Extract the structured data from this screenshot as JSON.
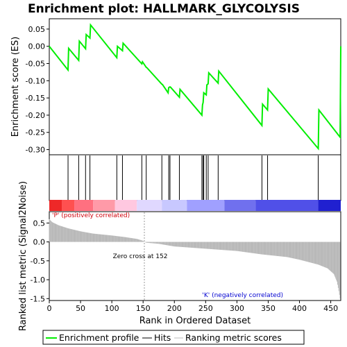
{
  "chart_data": {
    "type": "line",
    "title": "Enrichment plot: HALLMARK_GLYCOLYSIS",
    "es_panel": {
      "ylabel": "Enrichment score (ES)",
      "ylim": [
        -0.315,
        0.08
      ],
      "yticks": [
        "0.05",
        "0.00",
        "-0.05",
        "-0.10",
        "-0.15",
        "-0.20",
        "-0.25",
        "-0.30"
      ],
      "ytick_values": [
        0.05,
        0.0,
        -0.05,
        -0.1,
        -0.15,
        -0.2,
        -0.25,
        -0.3
      ],
      "series": [
        {
          "name": "Enrichment profile",
          "color": "#00ee00",
          "x": [
            0,
            30,
            31,
            47,
            48,
            58,
            59,
            65,
            66,
            108,
            109,
            117,
            118,
            148,
            149,
            155,
            156,
            180,
            181,
            190,
            191,
            193,
            194,
            208,
            209,
            244,
            245,
            246,
            247,
            251,
            252,
            254,
            255,
            270,
            271,
            340,
            341,
            349,
            350,
            430,
            431,
            465,
            466
          ],
          "y": [
            0.0,
            -0.069,
            -0.006,
            -0.041,
            0.015,
            -0.007,
            0.034,
            0.024,
            0.062,
            -0.033,
            0.0,
            -0.013,
            0.009,
            -0.051,
            -0.045,
            -0.061,
            -0.062,
            -0.11,
            -0.111,
            -0.135,
            -0.12,
            -0.118,
            -0.119,
            -0.148,
            -0.125,
            -0.2,
            -0.17,
            -0.163,
            -0.135,
            -0.141,
            -0.112,
            -0.109,
            -0.077,
            -0.107,
            -0.072,
            -0.23,
            -0.168,
            -0.185,
            -0.124,
            -0.297,
            -0.185,
            -0.264,
            0.0
          ]
        }
      ]
    },
    "hits": [
      30,
      47,
      58,
      65,
      108,
      117,
      148,
      155,
      180,
      191,
      193,
      208,
      244,
      246,
      247,
      251,
      254,
      270,
      340,
      349,
      430,
      466
    ],
    "rank_panel": {
      "ylabel": "Ranked list metric (Signal2Noise)",
      "xlabel": "Rank in Ordered Dataset",
      "ylim": [
        -1.55,
        0.8
      ],
      "yticks": [
        "0.5",
        "0.0",
        "-0.5",
        "-1.0",
        "-1.5"
      ],
      "ytick_values": [
        0.5,
        0.0,
        -0.5,
        -1.0,
        -1.5
      ],
      "xlim": [
        0,
        466
      ],
      "xticks": [
        "0",
        "50",
        "100",
        "150",
        "200",
        "250",
        "300",
        "350",
        "400",
        "450"
      ],
      "xtick_values": [
        0,
        50,
        100,
        150,
        200,
        250,
        300,
        350,
        400,
        450
      ],
      "metric_knots": {
        "rank": [
          0,
          5,
          15,
          30,
          50,
          70,
          100,
          120,
          140,
          150,
          152,
          155,
          175,
          200,
          250,
          300,
          340,
          380,
          400,
          430,
          445,
          455,
          460,
          463,
          465
        ],
        "value": [
          0.6,
          0.52,
          0.44,
          0.36,
          0.28,
          0.22,
          0.17,
          0.13,
          0.08,
          0.03,
          0.0,
          -0.02,
          -0.05,
          -0.12,
          -0.18,
          -0.24,
          -0.33,
          -0.4,
          -0.47,
          -0.6,
          -0.7,
          -0.85,
          -1.05,
          -1.3,
          -1.5
        ]
      },
      "zero_cross_label": "Zero cross at 152",
      "zero_cross_rank": 152,
      "positive_label": "'P' (positively correlated)",
      "negative_label": "'K' (negatively correlated)"
    },
    "heat_bar_colors": [
      "#ee2828",
      "#ff5050",
      "#ff7080",
      "#ff9aa8",
      "#ffc8e0",
      "#e0d8ff",
      "#c8c8ff",
      "#a0a0ff",
      "#7070ee",
      "#5050e8",
      "#2020d0"
    ],
    "heat_bar_breaks": [
      0,
      20,
      40,
      70,
      105,
      140,
      180,
      220,
      280,
      330,
      430,
      466
    ],
    "legend": {
      "items": [
        {
          "label": "Enrichment profile",
          "color": "#00ee00"
        },
        {
          "label": "Hits",
          "color": "#000000"
        },
        {
          "label": "Ranking metric scores",
          "color": "#bbbbbb"
        }
      ],
      "placement": "bottom"
    }
  }
}
